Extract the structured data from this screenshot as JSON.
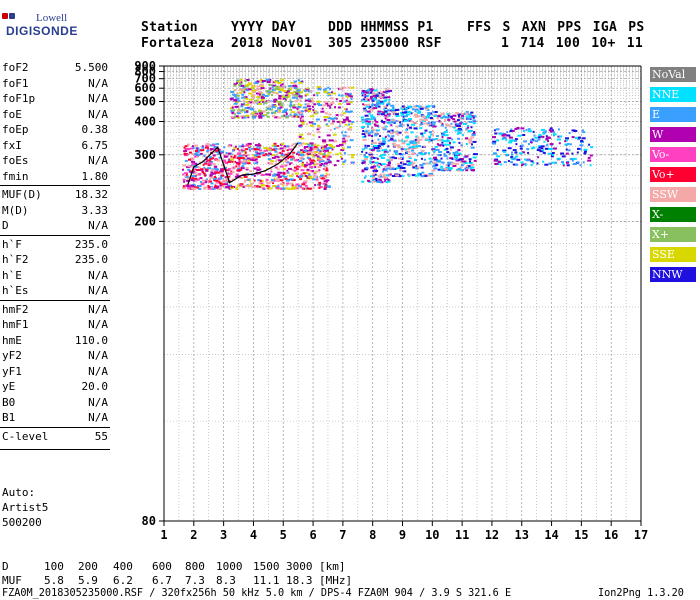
{
  "logo": {
    "top": "Lowell",
    "bottom": "DIGISONDE"
  },
  "header": {
    "labels": [
      "Station",
      "YYYY DAY",
      "DDD HHMMSS P1",
      "FFS S AXN PPS IGA PS"
    ],
    "values": [
      "Fortaleza",
      "2018 Nov01",
      "305 235000 RSF",
      "1 714 100 10+ 11"
    ]
  },
  "params": [
    {
      "name": "foF2",
      "value": "5.500"
    },
    {
      "name": "foF1",
      "value": "N/A"
    },
    {
      "name": "foF1p",
      "value": "N/A"
    },
    {
      "name": "foE",
      "value": "N/A"
    },
    {
      "name": "foEp",
      "value": "0.38"
    },
    {
      "name": "fxI",
      "value": "6.75"
    },
    {
      "name": "foEs",
      "value": "N/A"
    },
    {
      "name": "fmin",
      "value": "1.80"
    },
    {
      "name": "MUF(D)",
      "value": "18.32"
    },
    {
      "name": "M(D)",
      "value": "3.33"
    },
    {
      "name": "D",
      "value": "N/A"
    },
    {
      "name": "h`F",
      "value": "235.0"
    },
    {
      "name": "h`F2",
      "value": "235.0"
    },
    {
      "name": "h`E",
      "value": "N/A"
    },
    {
      "name": "h`Es",
      "value": "N/A"
    },
    {
      "name": "hmF2",
      "value": "N/A"
    },
    {
      "name": "hmF1",
      "value": "N/A"
    },
    {
      "name": "hmE",
      "value": "110.0"
    },
    {
      "name": "yF2",
      "value": "N/A"
    },
    {
      "name": "yF1",
      "value": "N/A"
    },
    {
      "name": "yE",
      "value": "20.0"
    },
    {
      "name": "B0",
      "value": "N/A"
    },
    {
      "name": "B1",
      "value": "N/A"
    },
    {
      "name": "C-level",
      "value": "55"
    }
  ],
  "notes": [
    "Auto:",
    "Artist5",
    "500200"
  ],
  "legend": [
    {
      "label": "NoVal",
      "color": "#808080"
    },
    {
      "label": "NNE",
      "color": "#00e0ff"
    },
    {
      "label": "E",
      "color": "#3aa0ff"
    },
    {
      "label": "W",
      "color": "#b000b0"
    },
    {
      "label": "Vo-",
      "color": "#ff40c0"
    },
    {
      "label": "Vo+",
      "color": "#ff0030"
    },
    {
      "label": "SSW",
      "color": "#f4a8a8"
    },
    {
      "label": "X-",
      "color": "#008000"
    },
    {
      "label": "X+",
      "color": "#88c060"
    },
    {
      "label": "SSE",
      "color": "#d8d800"
    },
    {
      "label": "NNW",
      "color": "#2010e0"
    }
  ],
  "footer": {
    "d_label": "D",
    "d_values": [
      "100",
      "200",
      "400",
      "600",
      "800",
      "1000",
      "1500",
      "3000",
      "[km]"
    ],
    "muf_label": "MUF",
    "muf_values": [
      "5.8",
      "5.9",
      "6.2",
      "6.7",
      "7.3",
      "8.3",
      "11.1",
      "18.3",
      "[MHz]"
    ],
    "info": "FZA0M_2018305235000.RSF / 320fx256h 50 kHz 5.0 km / DPS-4 FZA0M 904 / 3.9 S 321.6 E",
    "version": "Ion2Png 1.3.20"
  },
  "chart_data": {
    "type": "scatter",
    "title": "",
    "xlabel": "",
    "ylabel": "",
    "xlim": [
      1,
      17
    ],
    "ylim": [
      80,
      900
    ],
    "x_ticks": [
      1,
      2,
      3,
      4,
      5,
      6,
      7,
      8,
      9,
      10,
      11,
      12,
      13,
      14,
      15,
      16,
      17
    ],
    "y_ticks": [
      80,
      200,
      300,
      400,
      500,
      600,
      700,
      800,
      900
    ],
    "y_scale": "reciprocal",
    "grid": true,
    "legend_position": "right",
    "trace": {
      "x": [
        1.8,
        2.0,
        2.3,
        2.8,
        3.2,
        3.6,
        4.0,
        4.4,
        4.8,
        5.2,
        5.5
      ],
      "y": [
        245,
        275,
        285,
        318,
        248,
        260,
        262,
        268,
        280,
        300,
        330
      ]
    },
    "clusters": [
      {
        "x": [
          1.6,
          3.2
        ],
        "y": [
          240,
          330
        ],
        "n": 320,
        "colors": [
          "#ff0030",
          "#ff40c0",
          "#b000b0",
          "#3aa0ff",
          "#f4a8a8"
        ]
      },
      {
        "x": [
          3.2,
          6.5
        ],
        "y": [
          240,
          330
        ],
        "n": 520,
        "colors": [
          "#3aa0ff",
          "#f4a8a8",
          "#ff40c0",
          "#b000b0",
          "#d8d800",
          "#ff0030"
        ]
      },
      {
        "x": [
          3.2,
          5.6
        ],
        "y": [
          420,
          700
        ],
        "n": 380,
        "colors": [
          "#d8d800",
          "#3aa0ff",
          "#88c060",
          "#f4a8a8",
          "#b000b0"
        ]
      },
      {
        "x": [
          5.5,
          7.3
        ],
        "y": [
          280,
          620
        ],
        "n": 260,
        "colors": [
          "#3aa0ff",
          "#b000b0",
          "#f4a8a8",
          "#d8d800"
        ]
      },
      {
        "x": [
          7.6,
          8.6
        ],
        "y": [
          250,
          600
        ],
        "n": 360,
        "colors": [
          "#00e0ff",
          "#3aa0ff",
          "#2010e0",
          "#f4a8a8",
          "#b000b0"
        ]
      },
      {
        "x": [
          8.6,
          10.0
        ],
        "y": [
          260,
          480
        ],
        "n": 300,
        "colors": [
          "#f4a8a8",
          "#3aa0ff",
          "#00e0ff",
          "#2010e0"
        ]
      },
      {
        "x": [
          10.0,
          11.4
        ],
        "y": [
          270,
          450
        ],
        "n": 250,
        "colors": [
          "#f4a8a8",
          "#2010e0",
          "#3aa0ff",
          "#b000b0",
          "#00e0ff"
        ]
      },
      {
        "x": [
          12.0,
          15.3
        ],
        "y": [
          280,
          380
        ],
        "n": 220,
        "colors": [
          "#2010e0",
          "#3aa0ff",
          "#b000b0",
          "#00e0ff"
        ]
      }
    ]
  }
}
